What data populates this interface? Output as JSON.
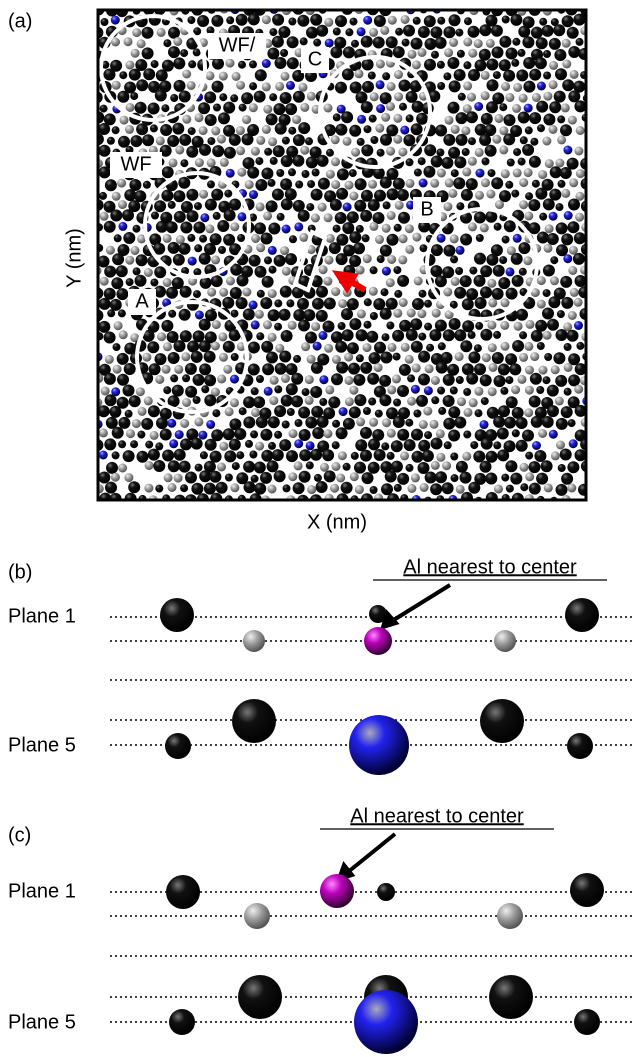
{
  "panel_a": {
    "label": "(a)",
    "x_axis_label": "X (nm)",
    "y_axis_label": "Y (nm)",
    "annotations": [
      "WF/",
      "C",
      "WF",
      "B",
      "A"
    ]
  },
  "panel_b": {
    "label": "(b)",
    "callout": "Al nearest to center",
    "planes": [
      "Plane 1",
      "Plane 5"
    ]
  },
  "panel_c": {
    "label": "(c)",
    "callout": "Al nearest to center",
    "planes": [
      "Plane 1",
      "Plane 5"
    ]
  }
}
